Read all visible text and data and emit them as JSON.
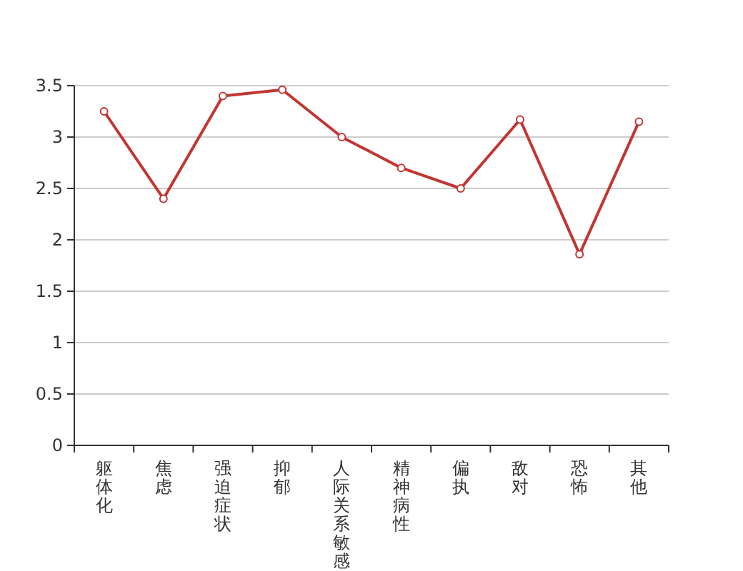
{
  "chart_data": {
    "type": "line",
    "categories": [
      "躯体化",
      "焦虑",
      "强迫症状",
      "抑郁",
      "人际关系敏感",
      "精神病性",
      "偏执",
      "敌对",
      "恐怖",
      "其他"
    ],
    "series": [
      {
        "color": "#c23531",
        "values": [
          3.25,
          2.4,
          3.4,
          3.46,
          3.0,
          2.7,
          2.5,
          3.17,
          1.86,
          3.15
        ]
      }
    ],
    "ylim": [
      0,
      3.5
    ],
    "yticks": [
      0,
      0.5,
      1,
      1.5,
      2,
      2.5,
      3,
      3.5
    ],
    "grid": "y",
    "marker": "circle",
    "line_style": "solid"
  }
}
